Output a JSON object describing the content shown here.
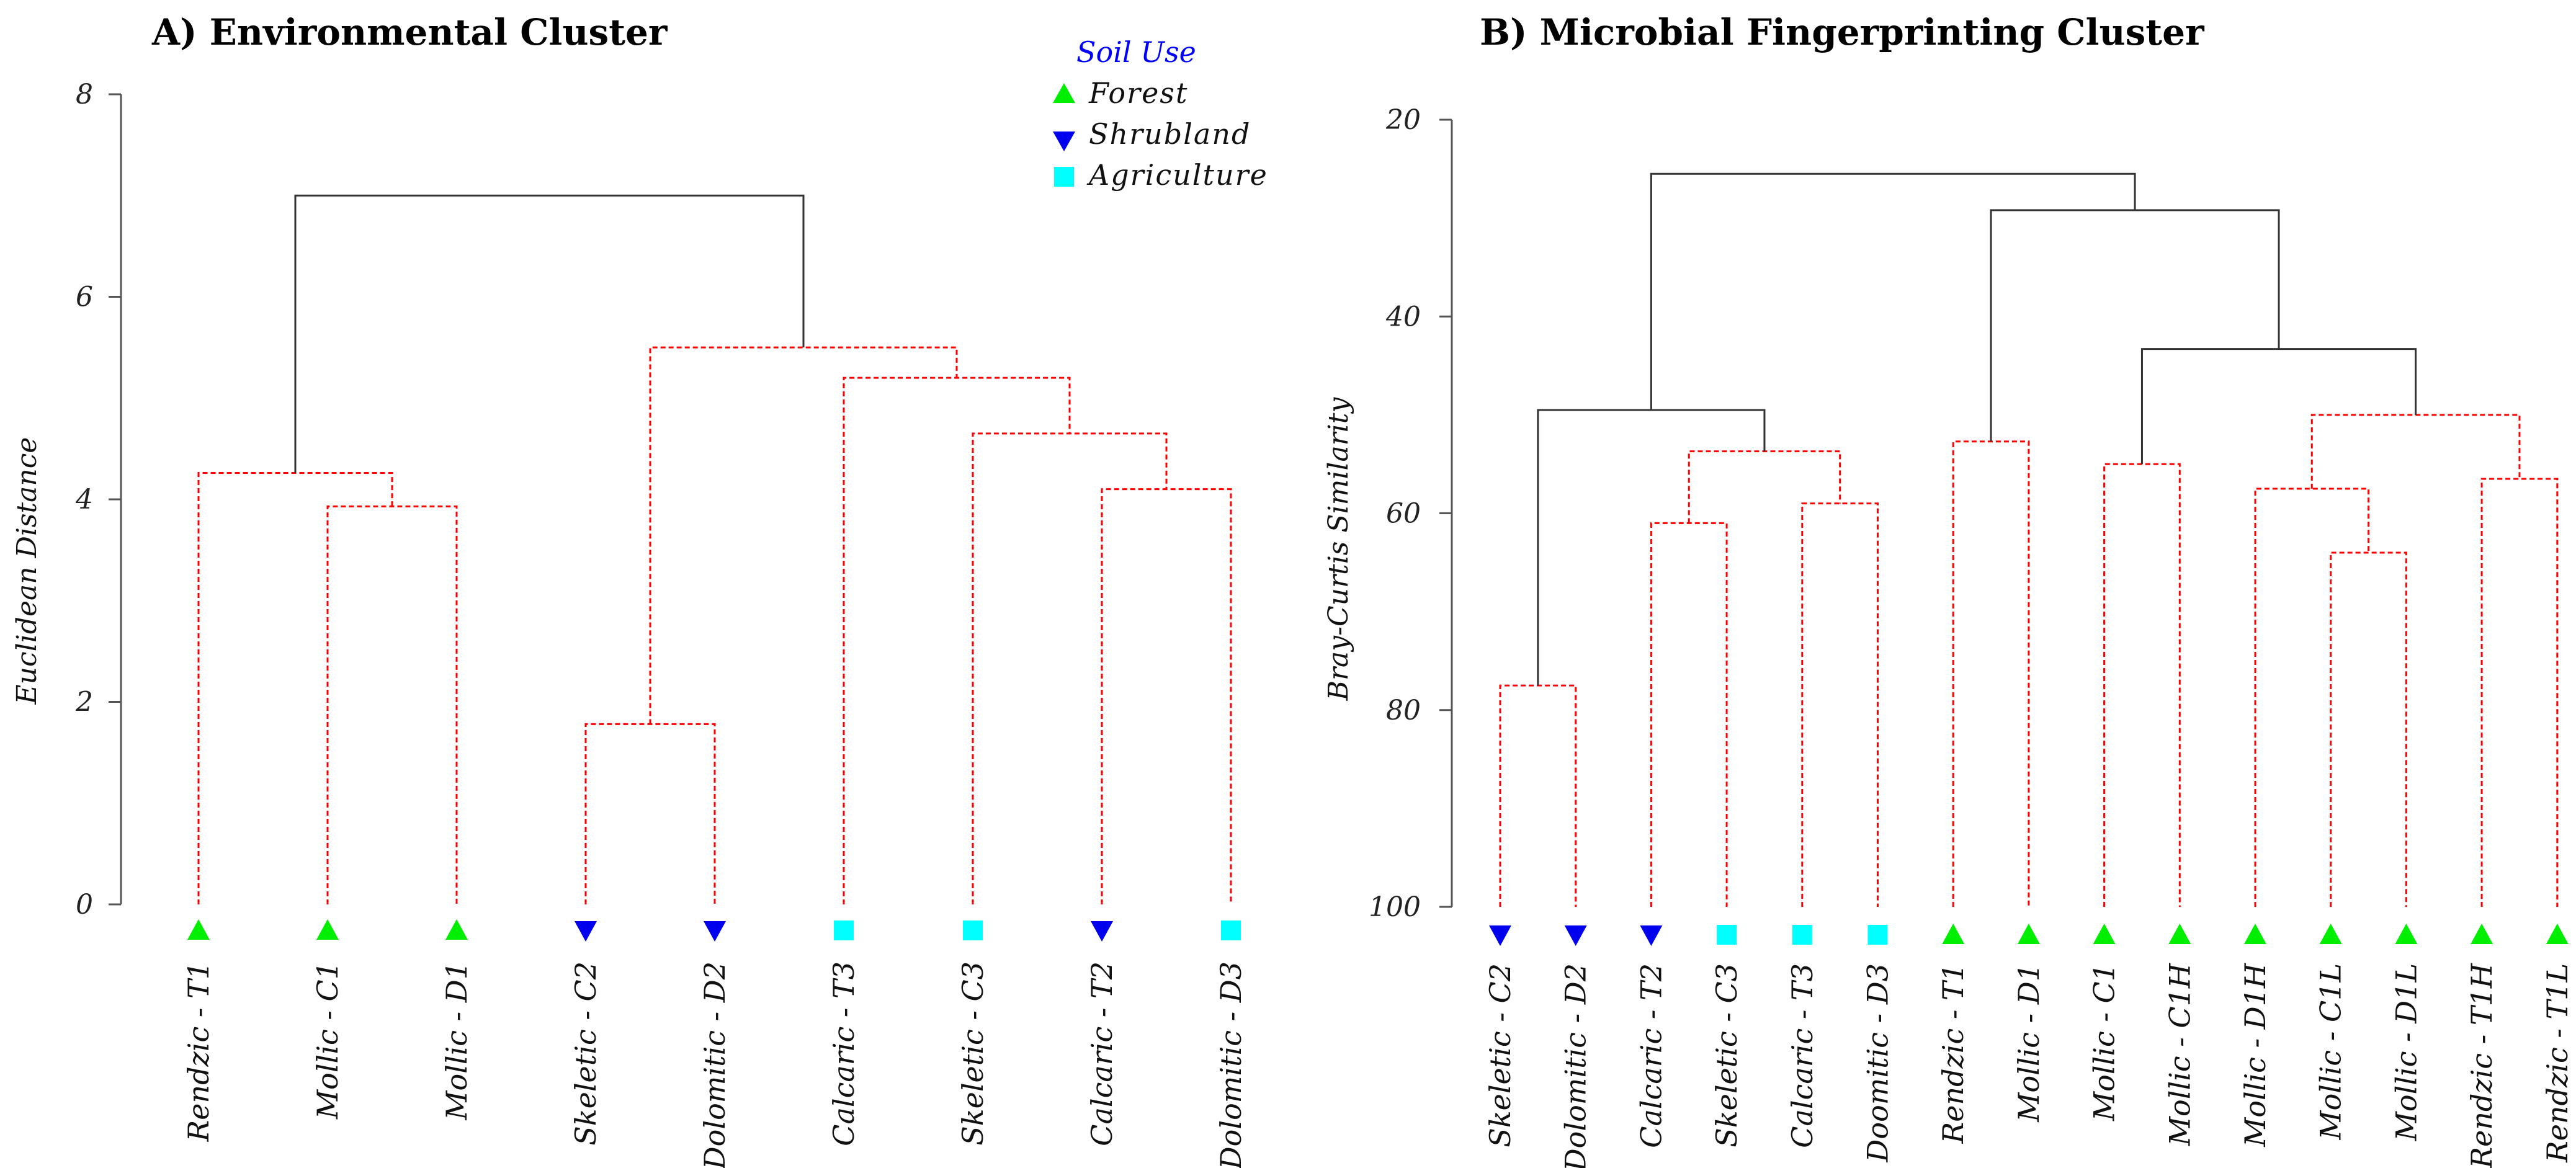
{
  "legend": {
    "title": "Soil Use",
    "items": [
      {
        "label": "Forest",
        "marker": "triangle-up",
        "color": "#00ee00"
      },
      {
        "label": "Shrubland",
        "marker": "triangle-down",
        "color": "#0000ee"
      },
      {
        "label": "Agriculture",
        "marker": "square",
        "color": "#00ffff"
      }
    ]
  },
  "colors": {
    "significant": "#ff0000",
    "nonsignificant": "#333333"
  },
  "chart_data": [
    {
      "type": "dendrogram",
      "title": "A) Environmental Cluster",
      "ylabel": "Euclidean Distance",
      "ylim": [
        0,
        8
      ],
      "yticks": [
        0,
        2,
        4,
        6,
        8
      ],
      "y_direction": "up",
      "leaves": [
        {
          "label": "Rendzic - T1",
          "use": "Forest"
        },
        {
          "label": "Mollic - C1",
          "use": "Forest"
        },
        {
          "label": "Mollic - D1",
          "use": "Forest"
        },
        {
          "label": "Skeletic - C2",
          "use": "Shrubland"
        },
        {
          "label": "Dolomitic - D2",
          "use": "Shrubland"
        },
        {
          "label": "Calcaric - T3",
          "use": "Agriculture"
        },
        {
          "label": "Skeletic - C3",
          "use": "Agriculture"
        },
        {
          "label": "Calcaric - T2",
          "use": "Shrubland"
        },
        {
          "label": "Dolomitic - D3",
          "use": "Agriculture"
        }
      ],
      "merges": [
        {
          "a": "L4",
          "b": "L5",
          "height": 1.78,
          "significant": true
        },
        {
          "a": "L2",
          "b": "L3",
          "height": 3.93,
          "significant": true
        },
        {
          "a": "L8",
          "b": "L9",
          "height": 4.1,
          "significant": true
        },
        {
          "a": "L1",
          "b": "M2",
          "height": 4.26,
          "significant": true
        },
        {
          "a": "L7",
          "b": "M3",
          "height": 4.65,
          "significant": true
        },
        {
          "a": "L6",
          "b": "M5",
          "height": 5.2,
          "significant": true
        },
        {
          "a": "M1",
          "b": "M6",
          "height": 5.5,
          "significant": true
        },
        {
          "a": "M4",
          "b": "M7",
          "height": 7.0,
          "significant": false
        }
      ]
    },
    {
      "type": "dendrogram",
      "title": "B) Microbial Fingerprinting Cluster",
      "ylabel": "Bray-Curtis Similarity",
      "ylim": [
        20,
        100
      ],
      "yticks": [
        20,
        40,
        60,
        80,
        100
      ],
      "y_direction": "down",
      "leaves": [
        {
          "label": "Skeletic - C2",
          "use": "Shrubland"
        },
        {
          "label": "Dolomitic - D2",
          "use": "Shrubland"
        },
        {
          "label": "Calcaric - T2",
          "use": "Shrubland"
        },
        {
          "label": "Skeletic - C3",
          "use": "Agriculture"
        },
        {
          "label": "Calcaric - T3",
          "use": "Agriculture"
        },
        {
          "label": "Doomitic - D3",
          "use": "Agriculture"
        },
        {
          "label": "Rendzic - T1",
          "use": "Forest"
        },
        {
          "label": "Mollic - D1",
          "use": "Forest"
        },
        {
          "label": "Mollic - C1",
          "use": "Forest"
        },
        {
          "label": "Mollic - C1H",
          "use": "Forest"
        },
        {
          "label": "Mollic - D1H",
          "use": "Forest"
        },
        {
          "label": "Mollic - C1L",
          "use": "Forest"
        },
        {
          "label": "Mollic - D1L",
          "use": "Forest"
        },
        {
          "label": "Rendzic - T1H",
          "use": "Forest"
        },
        {
          "label": "Rendzic - T1L",
          "use": "Forest"
        }
      ],
      "merges": [
        {
          "a": "L1",
          "b": "L2",
          "height": 77.5,
          "significant": true
        },
        {
          "a": "L12",
          "b": "L13",
          "height": 64.0,
          "significant": true
        },
        {
          "a": "L3",
          "b": "L4",
          "height": 61.0,
          "significant": true
        },
        {
          "a": "L5",
          "b": "L6",
          "height": 59.0,
          "significant": true
        },
        {
          "a": "L11",
          "b": "M2",
          "height": 57.5,
          "significant": true
        },
        {
          "a": "L14",
          "b": "L15",
          "height": 56.5,
          "significant": true
        },
        {
          "a": "L9",
          "b": "L10",
          "height": 55.0,
          "significant": true
        },
        {
          "a": "M3",
          "b": "M4",
          "height": 53.7,
          "significant": true
        },
        {
          "a": "L7",
          "b": "L8",
          "height": 52.7,
          "significant": true
        },
        {
          "a": "M5",
          "b": "M6",
          "height": 50.0,
          "significant": true
        },
        {
          "a": "M1",
          "b": "M8",
          "height": 49.5,
          "significant": false
        },
        {
          "a": "M7",
          "b": "M10",
          "height": 43.3,
          "significant": false
        },
        {
          "a": "M9",
          "b": "M12",
          "height": 29.2,
          "significant": false
        },
        {
          "a": "M11",
          "b": "M13",
          "height": 25.5,
          "significant": false
        }
      ]
    }
  ]
}
